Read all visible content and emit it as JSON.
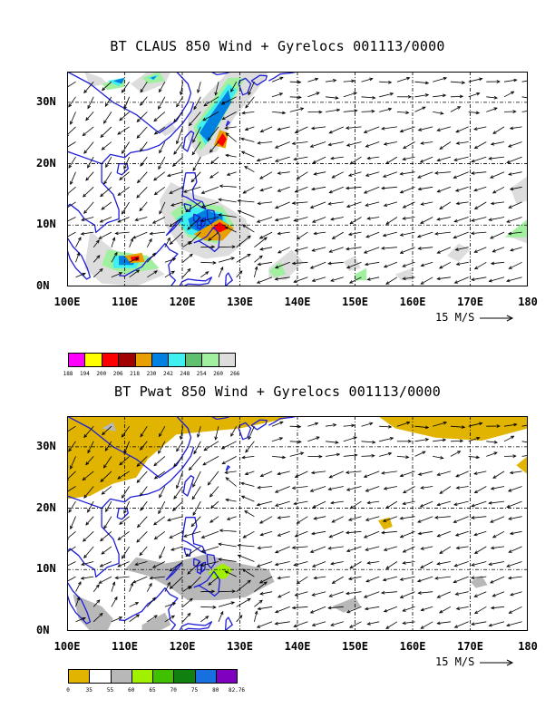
{
  "panel1": {
    "title": "BT CLAUS 850 Wind + Gyrelocs 001113/0000",
    "scale_label": "15 M/S"
  },
  "panel2": {
    "title": "BT Pwat 850 Wind + Gyrelocs 001113/0000",
    "scale_label": "15 M/S"
  },
  "map_axes": {
    "lon_labels": [
      "100E",
      "110E",
      "120E",
      "130E",
      "140E",
      "150E",
      "160E",
      "170E",
      "180"
    ],
    "lat_labels": [
      "0N",
      "10N",
      "20N",
      "30N"
    ]
  },
  "colorbar1": {
    "colors": [
      "#ff00ff",
      "#ffff00",
      "#ff0000",
      "#a00000",
      "#e8a000",
      "#0080e0",
      "#40f0f0",
      "#60c070",
      "#a0f0a0",
      "#dddddd"
    ],
    "labels": [
      "188",
      "194",
      "200",
      "206",
      "218",
      "230",
      "242",
      "248",
      "254",
      "260",
      "266"
    ]
  },
  "colorbar2": {
    "colors": [
      "#e0b400",
      "#ffffff",
      "#b8b8b8",
      "#a0f000",
      "#40c000",
      "#108010",
      "#1870e0",
      "#8000c0"
    ],
    "labels": [
      "0",
      "35",
      "55",
      "60",
      "65",
      "70",
      "75",
      "80",
      "82.76"
    ]
  }
}
